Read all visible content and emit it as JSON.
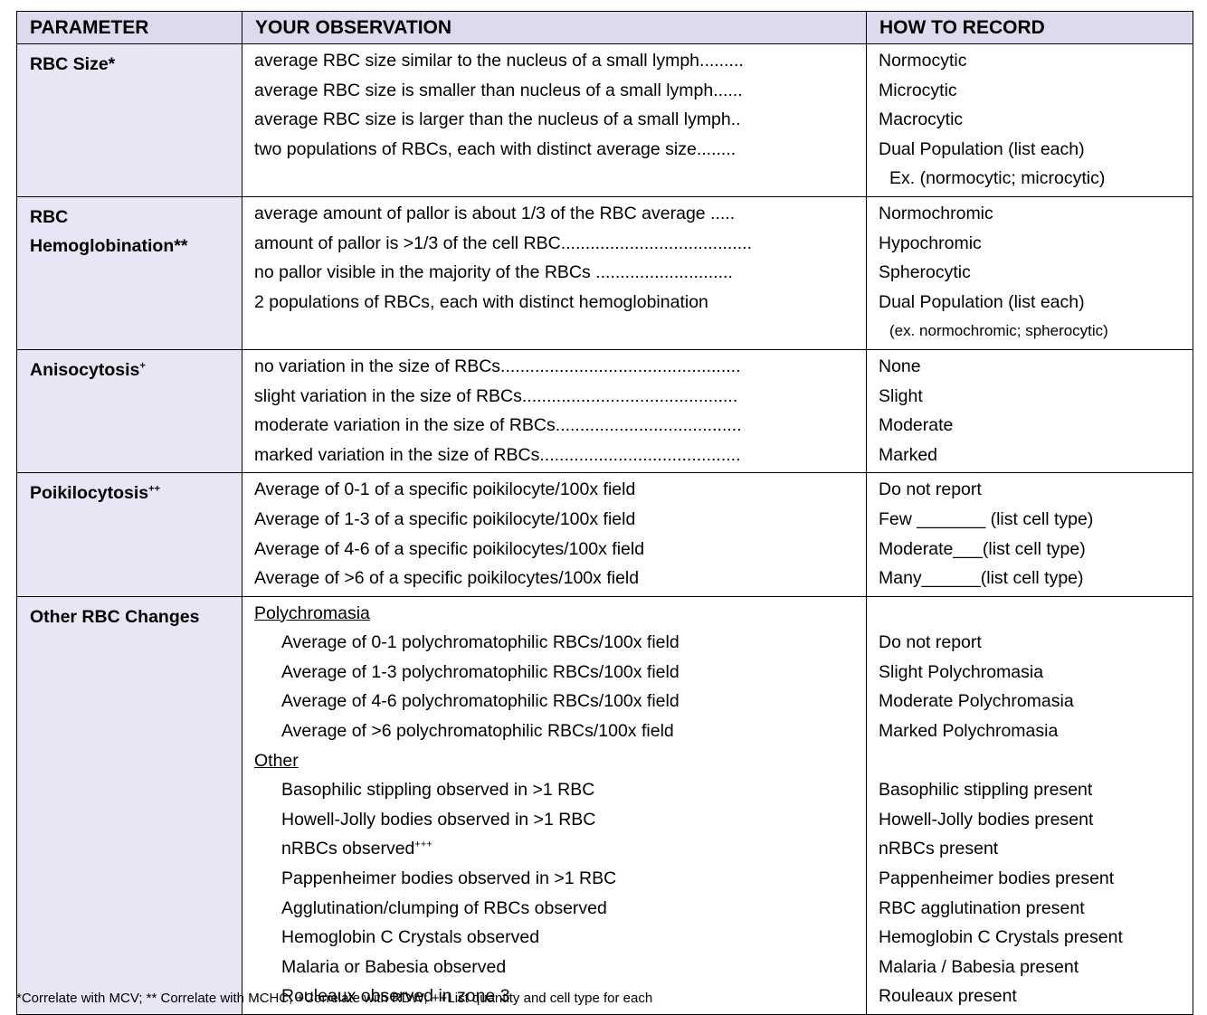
{
  "table": {
    "header": [
      "PARAMETER",
      "YOUR OBSERVATION",
      "HOW TO RECORD"
    ],
    "rows": [
      {
        "parameter": "RBC Size*",
        "lines": [
          {
            "observation": "average RBC size similar to the nucleus of a small lymph.........",
            "record": "Normocytic"
          },
          {
            "observation": "average RBC size is smaller than nucleus of a small lymph......",
            "record": "Microcytic"
          },
          {
            "observation": "average RBC size is larger than the nucleus of a small lymph..",
            "record": "Macrocytic"
          },
          {
            "observation": "two populations of RBCs, each with distinct average size........",
            "record": "Dual Population (list each)"
          },
          {
            "record": "Ex.  (normocytic; microcytic)",
            "indent": true
          }
        ]
      },
      {
        "parameter": "RBC Hemoglobination**",
        "lines": [
          {
            "observation": "average amount of pallor is about 1/3 of the RBC average .....",
            "record": "Normochromic"
          },
          {
            "observation": "amount of pallor is >1/3 of the cell RBC.......................................",
            "record": "Hypochromic"
          },
          {
            "observation": "no pallor visible in the majority of the RBCs ............................",
            "record": "Spherocytic"
          },
          {
            "observation": "2 populations of RBCs, each with distinct hemoglobination",
            "record": "Dual Population (list each)"
          },
          {
            "record": "(ex. normochromic; spherocytic)",
            "indent": true,
            "small": true
          }
        ]
      },
      {
        "parameter": "Anisocytosis",
        "parameter_sup": "+",
        "lines": [
          {
            "observation": "no variation in the size of RBCs.................................................",
            "record": "None"
          },
          {
            "observation": "slight variation in the size of RBCs............................................",
            "record": "Slight"
          },
          {
            "observation": "moderate variation in the size of RBCs......................................",
            "record": "Moderate"
          },
          {
            "observation": "marked variation in the size of RBCs.........................................",
            "record": "Marked"
          }
        ]
      },
      {
        "parameter": "Poikilocytosis",
        "parameter_sup": "++",
        "lines": [
          {
            "observation": "Average of 0-1 of a specific poikilocyte/100x field",
            "record": "Do not report"
          },
          {
            "observation": "Average of 1-3 of a specific poikilocyte/100x field",
            "record": "Few _______ (list cell type)"
          },
          {
            "observation": "Average of 4-6 of a specific poikilocytes/100x field",
            "record": "Moderate___(list cell type)"
          },
          {
            "observation": "Average of >6 of a specific poikilocytes/100x field",
            "record": "Many______(list cell type)"
          }
        ]
      },
      {
        "parameter": "Other RBC Changes",
        "lines": [
          {
            "observation": "Polychromasia",
            "heading": true
          },
          {
            "observation": "Average of 0-1 polychromatophilic RBCs/100x field",
            "record": "Do not report",
            "indent": true
          },
          {
            "observation": "Average of 1-3 polychromatophilic RBCs/100x field",
            "record": "Slight Polychromasia",
            "indent": true
          },
          {
            "observation": "Average of 4-6 polychromatophilic RBCs/100x field",
            "record": "Moderate Polychromasia",
            "indent": true
          },
          {
            "observation": "Average of >6 polychromatophilic RBCs/100x field",
            "record": "Marked Polychromasia",
            "indent": true
          },
          {
            "observation": "Other",
            "heading": true
          },
          {
            "observation": "Basophilic stippling observed in >1 RBC",
            "record": "Basophilic stippling present",
            "indent": true
          },
          {
            "observation": "Howell-Jolly bodies observed in >1 RBC",
            "record": "Howell-Jolly bodies present",
            "indent": true
          },
          {
            "observation": "nRBCs observed",
            "observation_sup": "+++",
            "record": "nRBCs present",
            "indent": true
          },
          {
            "observation": "Pappenheimer bodies observed in >1 RBC",
            "record": "Pappenheimer bodies present",
            "indent": true
          },
          {
            "observation": "Agglutination/clumping of RBCs observed",
            "record": "RBC agglutination present",
            "indent": true
          },
          {
            "observation": "Hemoglobin C Crystals observed",
            "record": "Hemoglobin C Crystals present",
            "indent": true
          },
          {
            "observation": "Malaria or Babesia observed",
            "record": "Malaria / Babesia present",
            "indent": true
          },
          {
            "observation": "Rouleaux observed in zone 3",
            "record": "Rouleaux present",
            "indent": true
          }
        ]
      }
    ]
  },
  "footnote": "*Correlate with MCV; ** Correlate with MCHC; +Correlate with RDW; ++List quantity and cell type for each"
}
